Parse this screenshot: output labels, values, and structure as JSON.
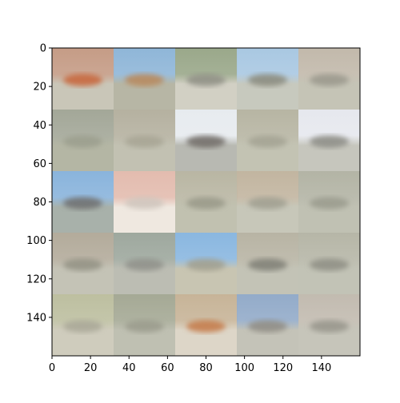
{
  "chart_data": {
    "type": "heatmap",
    "title": "",
    "xlabel": "",
    "ylabel": "",
    "image_size": [
      160,
      160
    ],
    "grid_rows": 5,
    "grid_cols": 5,
    "tile_size": 32,
    "xlim": [
      0,
      160
    ],
    "ylim": [
      160,
      0
    ],
    "y_axis_inverted": true,
    "grid": false,
    "x_ticks": [
      "0",
      "20",
      "40",
      "60",
      "80",
      "100",
      "120",
      "140"
    ],
    "y_ticks": [
      "0",
      "20",
      "40",
      "60",
      "80",
      "100",
      "120",
      "140"
    ],
    "tiles": [
      [
        {
          "sky": "#c59c86",
          "ground": "#c9c6b8",
          "object": "#c8653a"
        },
        {
          "sky": "#8fb6d8",
          "ground": "#b7b6a5",
          "object": "#b8875a"
        },
        {
          "sky": "#9aa88a",
          "ground": "#d2d0c4",
          "object": "#8f8f85"
        },
        {
          "sky": "#a9c8e2",
          "ground": "#c7c9be",
          "object": "#8a8a7c"
        },
        {
          "sky": "#c2b9ab",
          "ground": "#c5c4b6",
          "object": "#9a988c"
        }
      ],
      [
        {
          "sky": "#a3a798",
          "ground": "#b4b6a4",
          "object": "#9b9d8d"
        },
        {
          "sky": "#b5b1a0",
          "ground": "#c2c1b2",
          "object": "#a7a594"
        },
        {
          "sky": "#e7ebef",
          "ground": "#b8b9b2",
          "object": "#6f6a64"
        },
        {
          "sky": "#b7b5a3",
          "ground": "#c3c3b3",
          "object": "#a3a293"
        },
        {
          "sky": "#e6e8ee",
          "ground": "#c6c6bd",
          "object": "#8b8b84"
        }
      ],
      [
        {
          "sky": "#8ab4dc",
          "ground": "#a8b1aa",
          "object": "#6e6e6e"
        },
        {
          "sky": "#e3bcaf",
          "ground": "#efe8e0",
          "object": "#cfc6bd"
        },
        {
          "sky": "#b9b6a3",
          "ground": "#c1c1b0",
          "object": "#999988"
        },
        {
          "sky": "#c2b5a0",
          "ground": "#c7c7b9",
          "object": "#a09f90"
        },
        {
          "sky": "#b3b4a5",
          "ground": "#c0c1b3",
          "object": "#9a9b8d"
        }
      ],
      [
        {
          "sky": "#b3ab9b",
          "ground": "#c4c3b6",
          "object": "#939284"
        },
        {
          "sky": "#9ea89e",
          "ground": "#bcbdb3",
          "object": "#8f9189"
        },
        {
          "sky": "#8ab7e0",
          "ground": "#c8c5b2",
          "object": "#a19f8e"
        },
        {
          "sky": "#b8b4a4",
          "ground": "#c3c3b6",
          "object": "#7f7f75"
        },
        {
          "sky": "#b6b6a7",
          "ground": "#c2c3b6",
          "object": "#8e8e84"
        }
      ],
      [
        {
          "sky": "#bdbfa0",
          "ground": "#cfccbd",
          "object": "#a9a796"
        },
        {
          "sky": "#a5a995",
          "ground": "#bfc0b2",
          "object": "#9a9b8c"
        },
        {
          "sky": "#c7b498",
          "ground": "#ddd6c8",
          "object": "#c47a48"
        },
        {
          "sky": "#93abc9",
          "ground": "#c4c3b8",
          "object": "#8f8c84"
        },
        {
          "sky": "#c2bbb0",
          "ground": "#c6c5ba",
          "object": "#96958b"
        }
      ]
    ]
  }
}
